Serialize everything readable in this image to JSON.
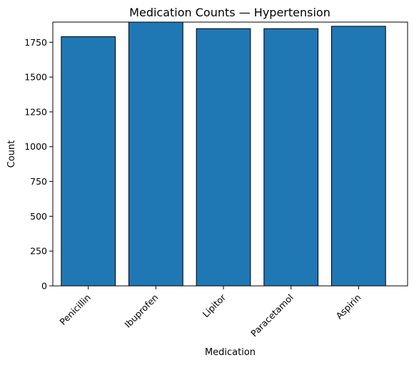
{
  "colors": {
    "bar_fill": "#1f77b4",
    "bar_edge": "#000000"
  },
  "chart_data": {
    "type": "bar",
    "title": "Medication Counts — Hypertension",
    "xlabel": "Medication",
    "ylabel": "Count",
    "categories": [
      "Penicillin",
      "Ibuprofen",
      "Lipitor",
      "Paracetamol",
      "Aspirin"
    ],
    "values": [
      1790,
      1895,
      1848,
      1848,
      1865
    ],
    "ylim": [
      0,
      1895
    ],
    "yticks": [
      0,
      250,
      500,
      750,
      1000,
      1250,
      1500,
      1750
    ],
    "grid": false,
    "legend": "none"
  }
}
